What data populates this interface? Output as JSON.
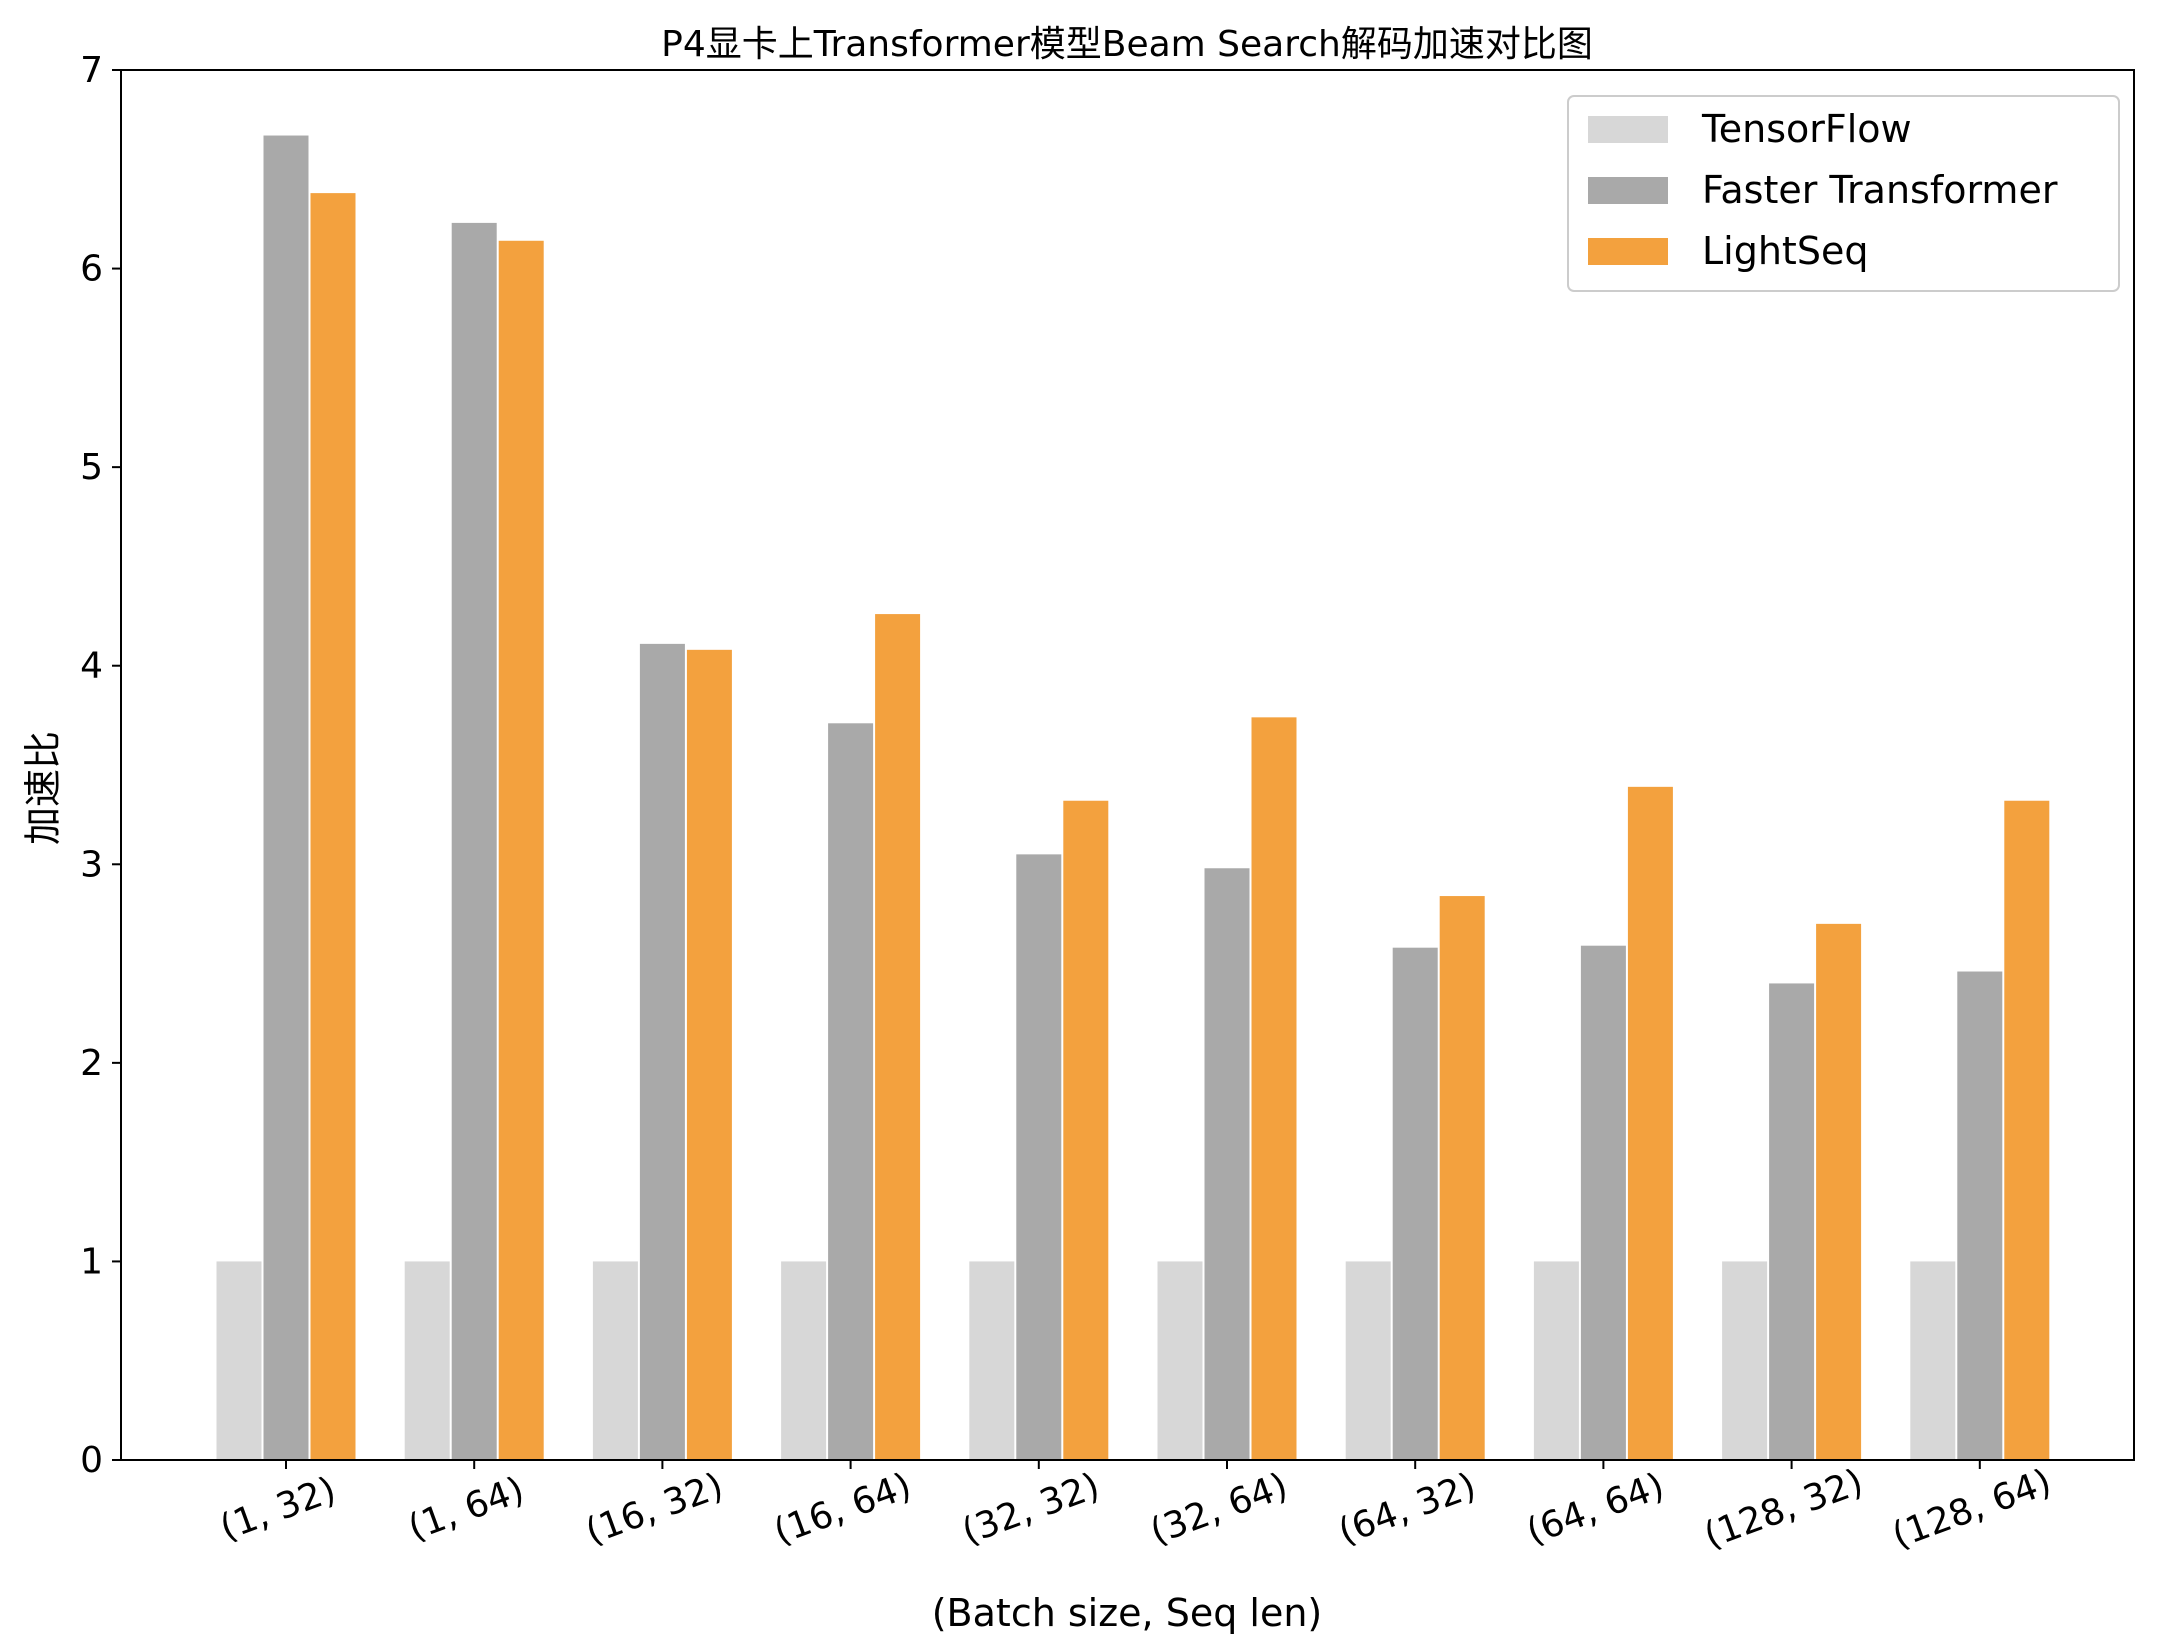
{
  "chart_data": {
    "type": "bar",
    "title": "P4显卡上Transformer模型Beam Search解码加速对比图",
    "xlabel": "(Batch size, Seq len)",
    "ylabel": "加速比",
    "ylim": [
      0,
      7
    ],
    "yticks": [
      0,
      1,
      2,
      3,
      4,
      5,
      6,
      7
    ],
    "grid": false,
    "legend_position": "top-right",
    "categories": [
      "(1, 32)",
      "(1, 64)",
      "(16, 32)",
      "(16, 64)",
      "(32, 32)",
      "(32, 64)",
      "(64, 32)",
      "(64, 64)",
      "(128, 32)",
      "(128, 64)"
    ],
    "series": [
      {
        "name": "TensorFlow",
        "color": "#d7d7d7",
        "values": [
          1,
          1,
          1,
          1,
          1,
          1,
          1,
          1,
          1,
          1
        ]
      },
      {
        "name": "Faster Transformer",
        "color": "#a9a9a9",
        "values": [
          6.67,
          6.23,
          4.11,
          3.71,
          3.05,
          2.98,
          2.58,
          2.59,
          2.4,
          2.46
        ]
      },
      {
        "name": "LightSeq",
        "color": "#f3a13e",
        "values": [
          6.38,
          6.14,
          4.08,
          4.26,
          3.32,
          3.74,
          2.84,
          3.39,
          2.7,
          3.32
        ]
      }
    ]
  }
}
